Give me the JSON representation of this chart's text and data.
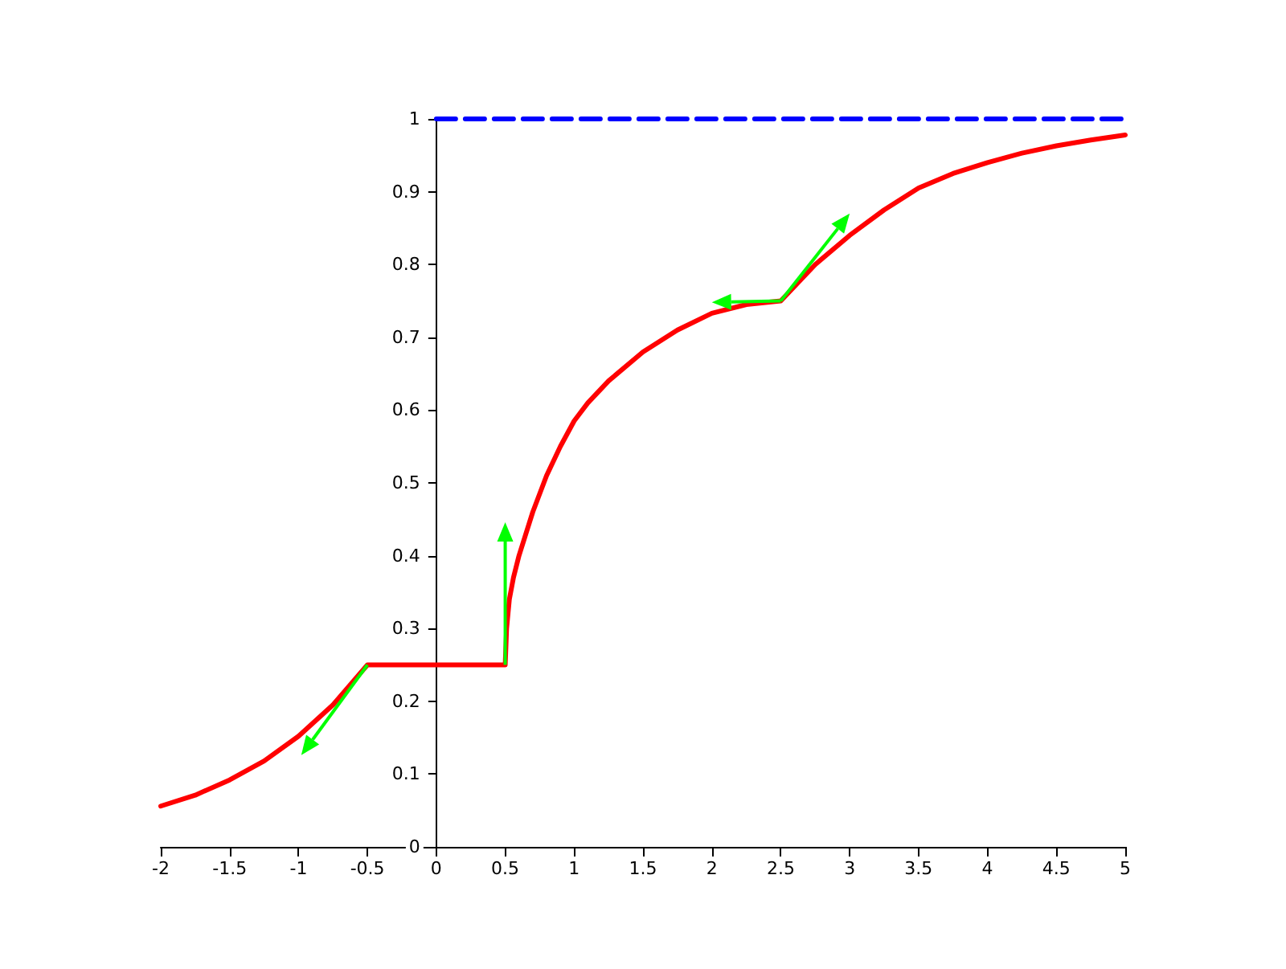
{
  "chart_data": {
    "type": "line",
    "xlim": [
      -2,
      5
    ],
    "ylim": [
      0,
      1
    ],
    "xticks": [
      -2,
      -1.5,
      -1,
      -0.5,
      0,
      0.5,
      1,
      1.5,
      2,
      2.5,
      3,
      3.5,
      4,
      4.5,
      5
    ],
    "yticks": [
      0,
      0.1,
      0.2,
      0.3,
      0.4,
      0.5,
      0.6,
      0.7,
      0.8,
      0.9,
      1
    ],
    "series": [
      {
        "color": "#ff0000",
        "line_style": "solid",
        "x": [
          -2,
          -1.75,
          -1.5,
          -1.25,
          -1,
          -0.75,
          -0.5,
          0.5,
          0.5,
          0.51,
          0.53,
          0.56,
          0.6,
          0.65,
          0.7,
          0.8,
          0.9,
          1.0,
          1.1,
          1.25,
          1.5,
          1.75,
          2.0,
          2.25,
          2.5,
          2.75,
          3.0,
          3.25,
          3.5,
          3.75,
          4.0,
          4.25,
          4.5,
          4.75,
          5.0
        ],
        "values": [
          0.056,
          0.071,
          0.092,
          0.118,
          0.152,
          0.195,
          0.25,
          0.25,
          0.25,
          0.3,
          0.34,
          0.37,
          0.4,
          0.43,
          0.46,
          0.51,
          0.55,
          0.585,
          0.61,
          0.64,
          0.68,
          0.71,
          0.733,
          0.745,
          0.75,
          0.8,
          0.84,
          0.875,
          0.905,
          0.925,
          0.94,
          0.953,
          0.963,
          0.971,
          0.978
        ]
      },
      {
        "color": "#0000ff",
        "line_style": "dashed",
        "x": [
          0,
          5
        ],
        "values": [
          1,
          1
        ]
      }
    ]
  }
}
